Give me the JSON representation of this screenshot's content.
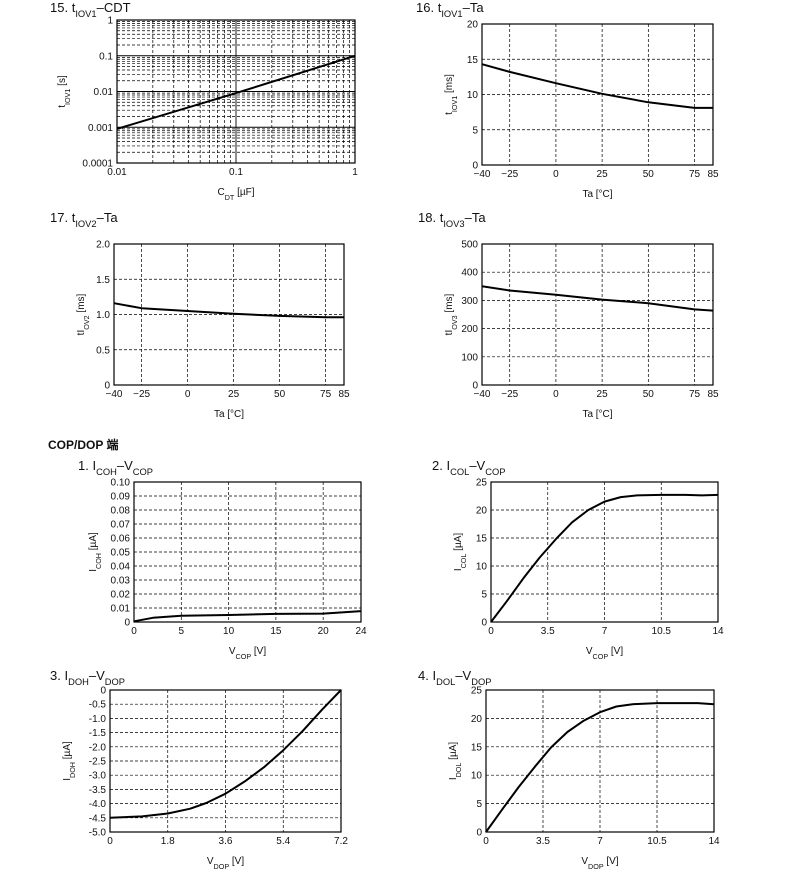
{
  "section_heading": "COP/DOP 端",
  "chart_data": [
    {
      "id": "c15",
      "type": "line",
      "number": "15.",
      "title_parts": [
        [
          "t",
          ""
        ],
        [
          "IOV1",
          "sub"
        ],
        [
          "–CDT",
          ""
        ]
      ],
      "xlabel_parts": [
        [
          "C",
          ""
        ],
        [
          "DT",
          "sub"
        ],
        [
          " [µF]",
          ""
        ]
      ],
      "ylabel_parts": [
        [
          "t",
          ""
        ],
        [
          "IOV1",
          "sub"
        ],
        [
          " [s]",
          ""
        ]
      ],
      "xscale": "log",
      "yscale": "log",
      "xlim": [
        0.01,
        1
      ],
      "ylim": [
        0.0001,
        1
      ],
      "xticks": [
        0.01,
        0.1,
        1
      ],
      "xtick_labels": [
        "0.01",
        "0.1",
        "1"
      ],
      "yticks": [
        0.0001,
        0.001,
        0.01,
        0.1,
        1
      ],
      "ytick_labels": [
        "0.0001",
        "0.001",
        "0.01",
        "0.1",
        "1"
      ],
      "grid": "log-minor-dashed",
      "series": [
        {
          "x": [
            0.01,
            0.1,
            1
          ],
          "y": [
            0.0009,
            0.009,
            0.1
          ]
        }
      ]
    },
    {
      "id": "c16",
      "type": "line",
      "number": "16.",
      "title_parts": [
        [
          "t",
          ""
        ],
        [
          "IOV1",
          "sub"
        ],
        [
          "–Ta",
          ""
        ]
      ],
      "xlabel_parts": [
        [
          "Ta [°C]",
          ""
        ]
      ],
      "ylabel_parts": [
        [
          "t",
          ""
        ],
        [
          "IOV1",
          "sub"
        ],
        [
          " [ms]",
          ""
        ]
      ],
      "xscale": "linear",
      "yscale": "linear",
      "xlim": [
        -40,
        85
      ],
      "ylim": [
        0,
        20
      ],
      "xticks": [
        -40,
        -25,
        0,
        25,
        50,
        75,
        85
      ],
      "xtick_labels": [
        "−40",
        "−25",
        "0",
        "25",
        "50",
        "75",
        "85"
      ],
      "yticks": [
        0,
        5,
        10,
        15,
        20
      ],
      "ytick_labels": [
        "0",
        "5",
        "10",
        "15",
        "20"
      ],
      "grid": "dashed",
      "series": [
        {
          "x": [
            -40,
            -25,
            0,
            25,
            50,
            75,
            85
          ],
          "y": [
            14.3,
            13.2,
            11.6,
            10.1,
            8.9,
            8.1,
            8.1
          ]
        }
      ]
    },
    {
      "id": "c17",
      "type": "line",
      "number": "17.",
      "title_parts": [
        [
          "t",
          ""
        ],
        [
          "IOV2",
          "sub"
        ],
        [
          "–Ta",
          ""
        ]
      ],
      "xlabel_parts": [
        [
          "Ta [°C]",
          ""
        ]
      ],
      "ylabel_parts": [
        [
          "tI",
          ""
        ],
        [
          "OV2",
          "sub"
        ],
        [
          " [ms]",
          ""
        ]
      ],
      "xscale": "linear",
      "yscale": "linear",
      "xlim": [
        -40,
        85
      ],
      "ylim": [
        0,
        2.0
      ],
      "xticks": [
        -40,
        -25,
        0,
        25,
        50,
        75,
        85
      ],
      "xtick_labels": [
        "−40",
        "−25",
        "0",
        "25",
        "50",
        "75",
        "85"
      ],
      "yticks": [
        0,
        0.5,
        1.0,
        1.5,
        2.0
      ],
      "ytick_labels": [
        "0",
        "0.5",
        "1.0",
        "1.5",
        "2.0"
      ],
      "grid": "dashed",
      "series": [
        {
          "x": [
            -40,
            -25,
            0,
            25,
            50,
            75,
            85
          ],
          "y": [
            1.16,
            1.09,
            1.05,
            1.01,
            0.98,
            0.96,
            0.96
          ]
        }
      ]
    },
    {
      "id": "c18",
      "type": "line",
      "number": "18.",
      "title_parts": [
        [
          "t",
          ""
        ],
        [
          "IOV3",
          "sub"
        ],
        [
          "–Ta",
          ""
        ]
      ],
      "xlabel_parts": [
        [
          "Ta [°C]",
          ""
        ]
      ],
      "ylabel_parts": [
        [
          "tI",
          ""
        ],
        [
          "OV3",
          "sub"
        ],
        [
          " [ms]",
          ""
        ]
      ],
      "xscale": "linear",
      "yscale": "linear",
      "xlim": [
        -40,
        85
      ],
      "ylim": [
        0,
        500
      ],
      "xticks": [
        -40,
        -25,
        0,
        25,
        50,
        75,
        85
      ],
      "xtick_labels": [
        "−40",
        "−25",
        "0",
        "25",
        "50",
        "75",
        "85"
      ],
      "yticks": [
        0,
        100,
        200,
        300,
        400,
        500
      ],
      "ytick_labels": [
        "0",
        "100",
        "200",
        "300",
        "400",
        "500"
      ],
      "grid": "dashed",
      "series": [
        {
          "x": [
            -40,
            -25,
            0,
            25,
            50,
            75,
            85
          ],
          "y": [
            350,
            335,
            320,
            303,
            290,
            268,
            264
          ]
        }
      ]
    },
    {
      "id": "c1",
      "type": "line",
      "number": "1.",
      "title_parts": [
        [
          "I",
          ""
        ],
        [
          "COH",
          "sub"
        ],
        [
          "–V",
          ""
        ],
        [
          "COP",
          "sub"
        ]
      ],
      "xlabel_parts": [
        [
          "V",
          ""
        ],
        [
          "COP",
          "sub"
        ],
        [
          " [V]",
          ""
        ]
      ],
      "ylabel_parts": [
        [
          "I",
          ""
        ],
        [
          "COH",
          "sub"
        ],
        [
          " [µA]",
          ""
        ]
      ],
      "xscale": "linear",
      "yscale": "linear",
      "xlim": [
        0,
        24
      ],
      "ylim": [
        0,
        0.1
      ],
      "xticks": [
        0,
        5,
        10,
        15,
        20,
        24
      ],
      "xtick_labels": [
        "0",
        "5",
        "10",
        "15",
        "20",
        "24"
      ],
      "yticks": [
        0,
        0.01,
        0.02,
        0.03,
        0.04,
        0.05,
        0.06,
        0.07,
        0.08,
        0.09,
        0.1
      ],
      "ytick_labels": [
        "0",
        "0.01",
        "0.02",
        "0.03",
        "0.04",
        "0.05",
        "0.06",
        "0.07",
        "0.08",
        "0.09",
        "0.10"
      ],
      "grid": "dashed",
      "series": [
        {
          "x": [
            0,
            2,
            5,
            10,
            15,
            20,
            24
          ],
          "y": [
            0.0005,
            0.003,
            0.0045,
            0.005,
            0.0058,
            0.006,
            0.0078
          ]
        }
      ]
    },
    {
      "id": "c2",
      "type": "line",
      "number": "2.",
      "title_parts": [
        [
          "I",
          ""
        ],
        [
          "COL",
          "sub"
        ],
        [
          "–V",
          ""
        ],
        [
          "COP",
          "sub"
        ]
      ],
      "xlabel_parts": [
        [
          "V",
          ""
        ],
        [
          "COP",
          "sub"
        ],
        [
          " [V]",
          ""
        ]
      ],
      "ylabel_parts": [
        [
          "I",
          ""
        ],
        [
          "COL",
          "sub"
        ],
        [
          " [µA]",
          ""
        ]
      ],
      "xscale": "linear",
      "yscale": "linear",
      "xlim": [
        0,
        14
      ],
      "ylim": [
        0,
        25
      ],
      "xticks": [
        0,
        3.5,
        7,
        10.5,
        14
      ],
      "xtick_labels": [
        "0",
        "3.5",
        "7",
        "10.5",
        "14"
      ],
      "yticks": [
        0,
        5,
        10,
        15,
        20,
        25
      ],
      "ytick_labels": [
        "0",
        "5",
        "10",
        "15",
        "20",
        "25"
      ],
      "grid": "dashed",
      "series": [
        {
          "x": [
            0,
            1,
            2,
            3,
            4,
            5,
            6,
            7,
            8,
            9,
            10.5,
            12,
            13,
            14
          ],
          "y": [
            0,
            3.8,
            7.8,
            11.5,
            14.8,
            17.8,
            20.0,
            21.5,
            22.3,
            22.6,
            22.7,
            22.7,
            22.6,
            22.7
          ]
        }
      ]
    },
    {
      "id": "c3",
      "type": "line",
      "number": "3.",
      "title_parts": [
        [
          "I",
          ""
        ],
        [
          "DOH",
          "sub"
        ],
        [
          "–V",
          ""
        ],
        [
          "DOP",
          "sub"
        ]
      ],
      "xlabel_parts": [
        [
          "V",
          ""
        ],
        [
          "DOP",
          "sub"
        ],
        [
          " [V]",
          ""
        ]
      ],
      "ylabel_parts": [
        [
          "I",
          ""
        ],
        [
          "DOH",
          "sub"
        ],
        [
          " [µA]",
          ""
        ]
      ],
      "xscale": "linear",
      "yscale": "linear",
      "xlim": [
        0,
        7.2
      ],
      "ylim": [
        -5.0,
        0
      ],
      "xticks": [
        0,
        1.8,
        3.6,
        5.4,
        7.2
      ],
      "xtick_labels": [
        "0",
        "1.8",
        "3.6",
        "5.4",
        "7.2"
      ],
      "yticks": [
        0,
        -0.5,
        -1.0,
        -1.5,
        -2.0,
        -2.5,
        -3.0,
        -3.5,
        -4.0,
        -4.5,
        -5.0
      ],
      "ytick_labels": [
        "0",
        "-0.5",
        "-1.0",
        "-1.5",
        "-2.0",
        "-2.5",
        "-3.0",
        "-3.5",
        "-4.0",
        "-4.5",
        "-5.0"
      ],
      "grid": "dashed",
      "series": [
        {
          "x": [
            0,
            1.0,
            1.8,
            2.5,
            3.0,
            3.6,
            4.2,
            4.8,
            5.4,
            6.0,
            6.6,
            7.2
          ],
          "y": [
            -4.5,
            -4.45,
            -4.35,
            -4.18,
            -3.98,
            -3.65,
            -3.22,
            -2.72,
            -2.12,
            -1.45,
            -0.7,
            0
          ]
        }
      ]
    },
    {
      "id": "c4",
      "type": "line",
      "number": "4.",
      "title_parts": [
        [
          "I",
          ""
        ],
        [
          "DOL",
          "sub"
        ],
        [
          "–V",
          ""
        ],
        [
          "DOP",
          "sub"
        ]
      ],
      "xlabel_parts": [
        [
          "V",
          ""
        ],
        [
          "DOP",
          "sub"
        ],
        [
          " [V]",
          ""
        ]
      ],
      "ylabel_parts": [
        [
          "I",
          ""
        ],
        [
          "DOL",
          "sub"
        ],
        [
          " [µA]",
          ""
        ]
      ],
      "xscale": "linear",
      "yscale": "linear",
      "xlim": [
        0,
        14
      ],
      "ylim": [
        0,
        25
      ],
      "xticks": [
        0,
        3.5,
        7,
        10.5,
        14
      ],
      "xtick_labels": [
        "0",
        "3.5",
        "7",
        "10.5",
        "14"
      ],
      "yticks": [
        0,
        5,
        10,
        15,
        20,
        25
      ],
      "ytick_labels": [
        "0",
        "5",
        "10",
        "15",
        "20",
        "25"
      ],
      "grid": "dashed",
      "series": [
        {
          "x": [
            0,
            1,
            2,
            3,
            4,
            5,
            6,
            7,
            8,
            9,
            10.5,
            12,
            13,
            14
          ],
          "y": [
            0,
            4.0,
            7.9,
            11.5,
            14.9,
            17.6,
            19.6,
            21.1,
            22.1,
            22.5,
            22.7,
            22.7,
            22.7,
            22.5
          ]
        }
      ]
    }
  ]
}
